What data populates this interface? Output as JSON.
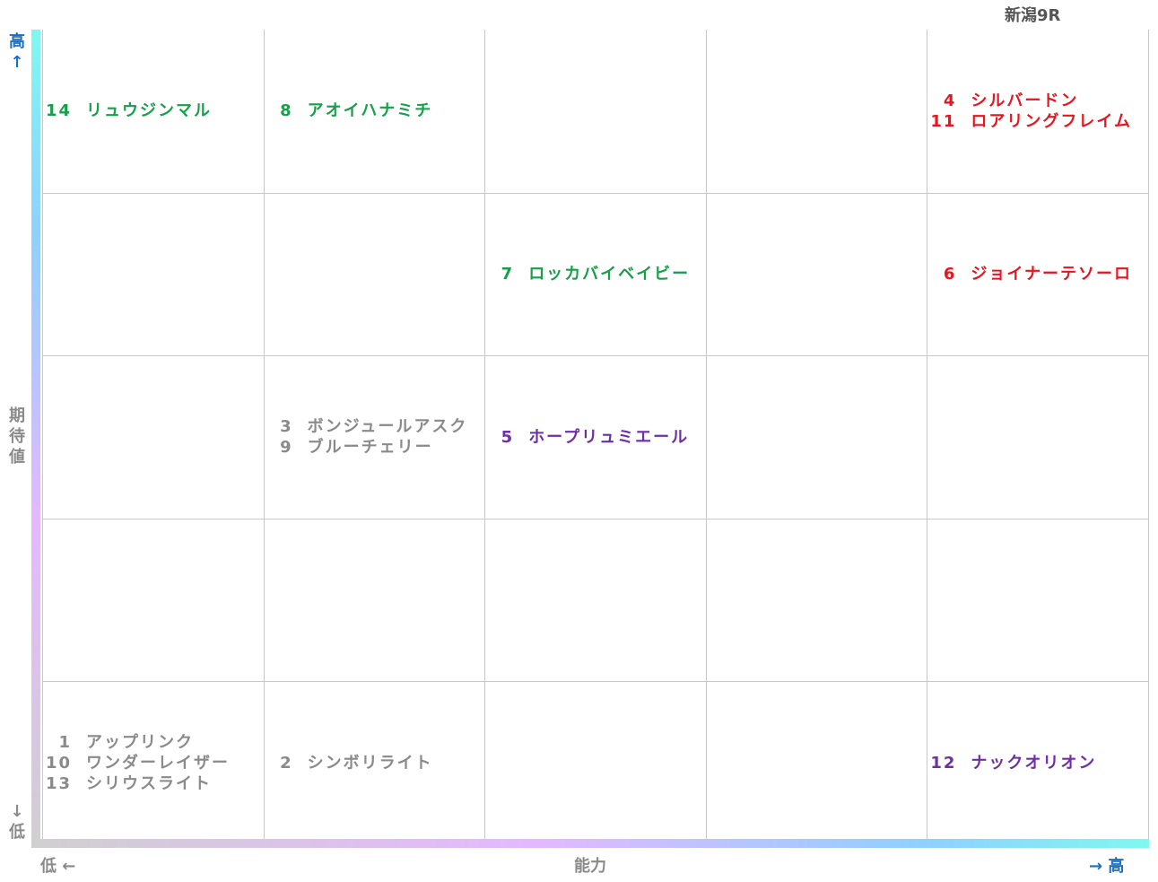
{
  "title": "新潟9R",
  "y_axis": {
    "high": "高↑",
    "label": "期待値",
    "low": "↓低"
  },
  "x_axis": {
    "low": "低 ←",
    "label": "能力",
    "high": "→ 高"
  },
  "colors": {
    "green": "#17a04a",
    "red": "#e8141e",
    "purple": "#6e2ea6",
    "grey": "#8a8a8a"
  },
  "rows": [
    [
      {
        "color": "green",
        "entries": [
          {
            "number": "14",
            "name": "リュウジンマル"
          }
        ]
      },
      {
        "color": "green",
        "entries": [
          {
            "number": "8",
            "name": "アオイハナミチ"
          }
        ]
      },
      {
        "entries": []
      },
      {
        "entries": []
      },
      {
        "color": "red",
        "entries": [
          {
            "number": "4",
            "name": "シルバードン"
          },
          {
            "number": "11",
            "name": "ロアリングフレイム"
          }
        ]
      }
    ],
    [
      {
        "entries": []
      },
      {
        "entries": []
      },
      {
        "color": "green",
        "entries": [
          {
            "number": "7",
            "name": "ロッカバイベイビー"
          }
        ]
      },
      {
        "entries": []
      },
      {
        "color": "red",
        "entries": [
          {
            "number": "6",
            "name": "ジョイナーテソーロ"
          }
        ]
      }
    ],
    [
      {
        "entries": []
      },
      {
        "color": "grey",
        "entries": [
          {
            "number": "3",
            "name": "ボンジュールアスク"
          },
          {
            "number": "9",
            "name": "ブルーチェリー"
          }
        ]
      },
      {
        "color": "purple",
        "entries": [
          {
            "number": "5",
            "name": "ホープリュミエール"
          }
        ]
      },
      {
        "entries": []
      },
      {
        "entries": []
      }
    ],
    [
      {
        "entries": []
      },
      {
        "entries": []
      },
      {
        "entries": []
      },
      {
        "entries": []
      },
      {
        "entries": []
      }
    ],
    [
      {
        "color": "grey",
        "entries": [
          {
            "number": "1",
            "name": "アップリンク"
          },
          {
            "number": "10",
            "name": "ワンダーレイザー"
          },
          {
            "number": "13",
            "name": "シリウスライト"
          }
        ]
      },
      {
        "color": "grey",
        "entries": [
          {
            "number": "2",
            "name": "シンボリライト"
          }
        ]
      },
      {
        "entries": []
      },
      {
        "entries": []
      },
      {
        "color": "purple",
        "entries": [
          {
            "number": "12",
            "name": "ナックオリオン"
          }
        ]
      }
    ]
  ]
}
